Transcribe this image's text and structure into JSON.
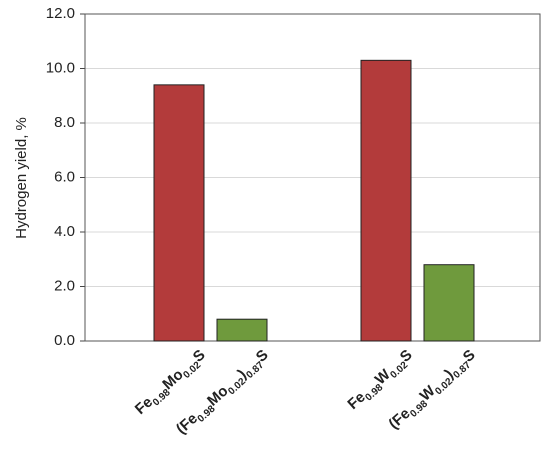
{
  "chart_data": {
    "type": "bar",
    "y_label": "Hydrogen yield, %",
    "categories": [
      "Fe0.98Mo0.02S",
      "(Fe0.98Mo0.02)0.87S",
      "Fe0.98W0.02S",
      "(Fe0.98W0.02)0.87S"
    ],
    "values": [
      9.4,
      0.8,
      10.3,
      2.8
    ],
    "colors": [
      "#b33b3b",
      "#6f9a3d",
      "#b33b3b",
      "#6f9a3d"
    ],
    "ylim": [
      0,
      12
    ],
    "yticks": [
      {
        "value": 0,
        "label": "0.0"
      },
      {
        "value": 2,
        "label": "2.0"
      },
      {
        "value": 4,
        "label": "4.0"
      },
      {
        "value": 6,
        "label": "6.0"
      },
      {
        "value": 8,
        "label": "8.0"
      },
      {
        "value": 10,
        "label": "10.0"
      },
      {
        "value": 12,
        "label": "12.0"
      }
    ],
    "grid": true
  }
}
